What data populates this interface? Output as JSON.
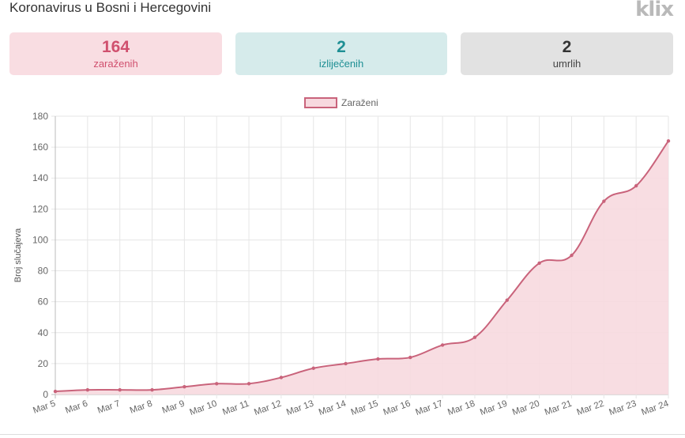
{
  "header": {
    "title": "Koronavirus u Bosni i Hercegovini",
    "logo": "klix"
  },
  "stats": [
    {
      "value": "164",
      "label": "zaraženih"
    },
    {
      "value": "2",
      "label": "izliječenih"
    },
    {
      "value": "2",
      "label": "umrlih"
    }
  ],
  "colors": {
    "infected_text": "#d0506e",
    "recovered_text": "#1e8f94",
    "line": "#c9637b",
    "fill": "#f7d9df"
  },
  "chart_data": {
    "type": "area",
    "categories": [
      "Mar 5",
      "Mar 6",
      "Mar 7",
      "Mar 8",
      "Mar 9",
      "Mar 10",
      "Mar 11",
      "Mar 12",
      "Mar 13",
      "Mar 14",
      "Mar 15",
      "Mar 16",
      "Mar 17",
      "Mar 18",
      "Mar 19",
      "Mar 20",
      "Mar 21",
      "Mar 22",
      "Mar 23",
      "Mar 24"
    ],
    "series": [
      {
        "name": "Zaraženi",
        "values": [
          2,
          3,
          3,
          3,
          5,
          7,
          7,
          11,
          17,
          20,
          23,
          24,
          32,
          37,
          61,
          85,
          90,
          125,
          135,
          164
        ]
      }
    ],
    "ylabel": "Broj slučajeva",
    "xlabel": "",
    "ylim": [
      0,
      180
    ],
    "yticks": [
      0,
      20,
      40,
      60,
      80,
      100,
      120,
      140,
      160,
      180
    ],
    "grid": true,
    "legend_position": "top-center"
  }
}
